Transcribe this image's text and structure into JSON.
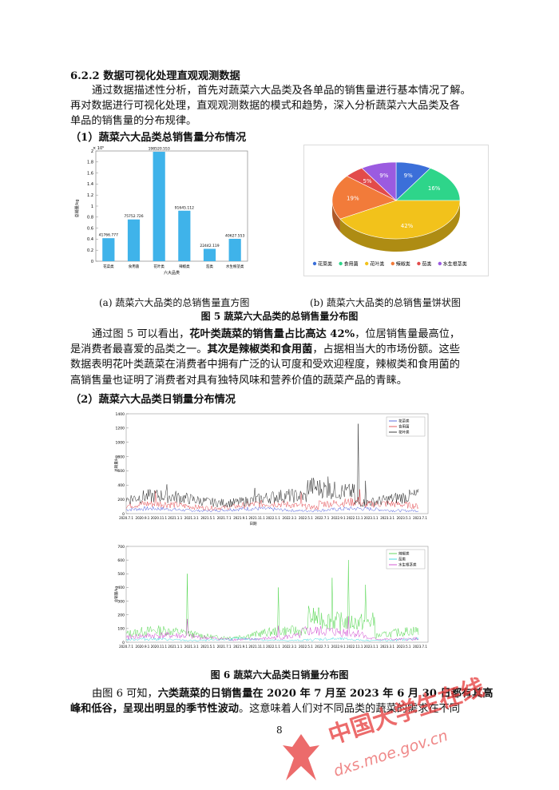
{
  "section": {
    "heading": "6.2.2 数据可视化处理直观观测数据",
    "intro_lines": [
      "通过数据描述性分析，首先对蔬菜六大品类及各单品的销售量进行基本情况了解。",
      "再对数据进行可视化处理，直观观测数据的模式和趋势，深入分析蔬菜六大品类及各",
      "单品的销售量的分布规律。"
    ]
  },
  "sub1": {
    "heading": "（1）蔬菜六大品类总销售量分布情况"
  },
  "fig5": {
    "caption_a": "(a)  蔬菜六大品类的总销售量直方图",
    "caption_b": "(b)  蔬菜六大品类的总销售量饼状图",
    "title": "图 5 蔬菜六大品类的总销售量分布图"
  },
  "para2_lines": [
    {
      "pre": "通过图  5 可以看出，",
      "bold": "花叶类蔬菜的销售量占比高达 42%",
      "post": "，位居销售量最高位，"
    },
    {
      "pre": "是消费者最喜爱的品类之一。",
      "bold": "其次是辣椒类和食用菌",
      "post": "，占据相当大的市场份额。这些"
    },
    {
      "pre": "数据表明花叶类蔬菜在消费者中拥有广泛的认可度和受欢迎程度，辣椒类和食用菌的",
      "bold": "",
      "post": ""
    },
    {
      "pre": "高销售量也证明了消费者对具有独特风味和营养价值的蔬菜产品的青睐。",
      "bold": "",
      "post": ""
    }
  ],
  "sub2": {
    "heading": "（2）蔬菜六大品类日销量分布情况"
  },
  "fig6": {
    "title": "图 6 蔬菜六大品类日销量分布图"
  },
  "para3_lines": [
    {
      "pre": "由图  6 可知，",
      "bold": "六类蔬菜的日销售量在 2020 年 7 月至 2023 年 6 月 30 日都有其高",
      "post": ""
    },
    {
      "pre": "",
      "bold": "峰和低谷，呈现出明显的季节性波动",
      "post": "。这意味着人们对不同品类的蔬菜的需求在不同"
    }
  ],
  "page_number": "8",
  "watermark": {
    "cn": "中国大学生在线",
    "url": "dxs.moe.gov.cn"
  },
  "chart_data": [
    {
      "type": "bar",
      "categories": [
        "花菜类",
        "食用菌",
        "花叶类",
        "辣椒类",
        "茄类",
        "水生根茎类"
      ],
      "values": [
        41766.777,
        75752.726,
        198520.553,
        91645.112,
        22442.119,
        40627.553
      ],
      "value_labels": [
        "41766.777",
        "75752.726",
        "198520.553",
        "91645.112",
        "22442.119",
        "40627.553"
      ],
      "xlabel": "六大品类",
      "ylabel": "总销量/kg",
      "ylim": [
        0,
        2.0
      ],
      "y_multiplier": "× 10⁵",
      "yticks": [
        "0",
        "0.2",
        "0.4",
        "0.6",
        "0.8",
        "1",
        "1.2",
        "1.4",
        "1.6",
        "1.8",
        "2"
      ],
      "bar_color": "#3fb3ea"
    },
    {
      "type": "pie",
      "labels": [
        "花菜类",
        "食用菌",
        "花叶类",
        "辣椒类",
        "茄类",
        "水生根茎类"
      ],
      "values": [
        9,
        16,
        42,
        19,
        5,
        9
      ],
      "value_labels": [
        "9%",
        "16%",
        "42%",
        "19%",
        "5%",
        "9%"
      ],
      "colors": [
        "#3b6fd9",
        "#2ed58a",
        "#f2c21b",
        "#f27b3a",
        "#e24b4b",
        "#9b5be0"
      ],
      "legend_position": "bottom"
    },
    {
      "type": "line",
      "series": [
        {
          "name": "花菜类",
          "color": "#3a4bd6"
        },
        {
          "name": "食用菌",
          "color": "#e0363c"
        },
        {
          "name": "花叶类",
          "color": "#111111"
        }
      ],
      "ylabel": "总销量/kg",
      "xlabel": "日期",
      "ylim": [
        0,
        1400
      ],
      "yticks": [
        "0",
        "200",
        "400",
        "600",
        "800",
        "1000",
        "1200",
        "1400"
      ],
      "xticks": [
        "2020.7.1",
        "2020.9.1",
        "2020.11.1",
        "2021.1.1",
        "2021.3.1",
        "2021.5.1",
        "2021.7.1",
        "2021.9.1",
        "2021.11.1",
        "2022.1.1",
        "2022.3.1",
        "2022.5.1",
        "2022.7.1",
        "2022.9.1",
        "2022.11.1",
        "2023.1.1",
        "2023.3.1",
        "2023.5.1",
        "2023.7.1"
      ]
    },
    {
      "type": "line",
      "series": [
        {
          "name": "辣椒类",
          "color": "#3ed13a"
        },
        {
          "name": "茄类",
          "color": "#1fd3d8"
        },
        {
          "name": "水生根茎类",
          "color": "#c933c9"
        }
      ],
      "ylabel": "总销量/kg",
      "xlabel": "",
      "ylim": [
        0,
        700
      ],
      "yticks": [
        "0",
        "100",
        "200",
        "300",
        "400",
        "500",
        "600",
        "700"
      ],
      "xticks": [
        "2020.7.1",
        "2020.9.1",
        "2020.11.1",
        "2021.1.1",
        "2021.3.1",
        "2021.5.1",
        "2021.7.1",
        "2021.9.1",
        "2021.11.1",
        "2022.1.1",
        "2022.3.1",
        "2022.5.1",
        "2022.7.1",
        "2022.9.1",
        "2022.11.1",
        "2023.1.1",
        "2023.3.1",
        "2023.5.1",
        "2023.7.1"
      ]
    }
  ]
}
